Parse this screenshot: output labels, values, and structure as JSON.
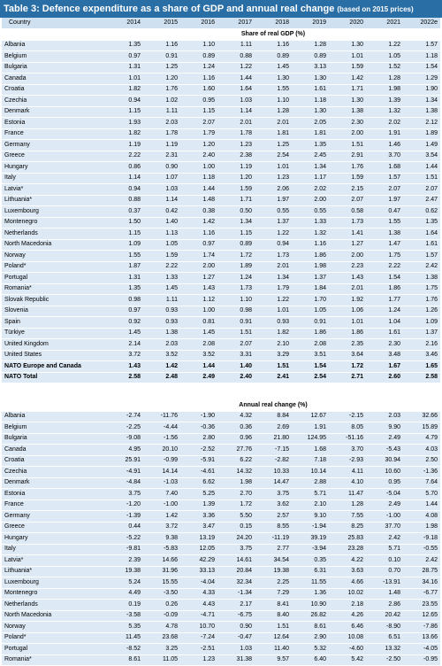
{
  "title": "Table 3: Defence expenditure as a share of GDP and annual real change",
  "subtitle": "(based on 2015 prices)",
  "table": {
    "columns": [
      "Country",
      "2014",
      "2015",
      "2016",
      "2017",
      "2018",
      "2019",
      "2020",
      "2021",
      "2022e"
    ],
    "sections": [
      {
        "label": "Share of real GDP (%)",
        "rows": [
          [
            "Albania",
            "1.35",
            "1.16",
            "1.10",
            "1.11",
            "1.16",
            "1.28",
            "1.30",
            "1.22",
            "1.57"
          ],
          [
            "Belgium",
            "0.97",
            "0.91",
            "0.89",
            "0.88",
            "0.89",
            "0.89",
            "1.01",
            "1.05",
            "1.18"
          ],
          [
            "Bulgaria",
            "1.31",
            "1.25",
            "1.24",
            "1.22",
            "1.45",
            "3.13",
            "1.59",
            "1.52",
            "1.54"
          ],
          [
            "Canada",
            "1.01",
            "1.20",
            "1.16",
            "1.44",
            "1.30",
            "1.30",
            "1.42",
            "1.28",
            "1.29"
          ],
          [
            "Croatia",
            "1.82",
            "1.76",
            "1.60",
            "1.64",
            "1.55",
            "1.61",
            "1.71",
            "1.98",
            "1.90"
          ],
          [
            "Czechia",
            "0.94",
            "1.02",
            "0.95",
            "1.03",
            "1.10",
            "1.18",
            "1.30",
            "1.39",
            "1.34"
          ],
          [
            "Denmark",
            "1.15",
            "1.11",
            "1.15",
            "1.14",
            "1.28",
            "1.30",
            "1.38",
            "1.32",
            "1.38"
          ],
          [
            "Estonia",
            "1.93",
            "2.03",
            "2.07",
            "2.01",
            "2.01",
            "2.05",
            "2.30",
            "2.02",
            "2.12"
          ],
          [
            "France",
            "1.82",
            "1.78",
            "1.79",
            "1.78",
            "1.81",
            "1.81",
            "2.00",
            "1.91",
            "1.89"
          ],
          [
            "Germany",
            "1.19",
            "1.19",
            "1.20",
            "1.23",
            "1.25",
            "1.35",
            "1.51",
            "1.46",
            "1.49"
          ],
          [
            "Greece",
            "2.22",
            "2.31",
            "2.40",
            "2.38",
            "2.54",
            "2.45",
            "2.91",
            "3.70",
            "3.54"
          ],
          [
            "Hungary",
            "0.86",
            "0.90",
            "1.00",
            "1.19",
            "1.01",
            "1.34",
            "1.76",
            "1.68",
            "1.44"
          ],
          [
            "Italy",
            "1.14",
            "1.07",
            "1.18",
            "1.20",
            "1.23",
            "1.17",
            "1.59",
            "1.57",
            "1.51"
          ],
          [
            "Latvia*",
            "0.94",
            "1.03",
            "1.44",
            "1.59",
            "2.06",
            "2.02",
            "2.15",
            "2.07",
            "2.07"
          ],
          [
            "Lithuania*",
            "0.88",
            "1.14",
            "1.48",
            "1.71",
            "1.97",
            "2.00",
            "2.07",
            "1.97",
            "2.47"
          ],
          [
            "Luxembourg",
            "0.37",
            "0.42",
            "0.38",
            "0.50",
            "0.55",
            "0.55",
            "0.58",
            "0.47",
            "0.62"
          ],
          [
            "Montenegro",
            "1.50",
            "1.40",
            "1.42",
            "1.34",
            "1.37",
            "1.33",
            "1.73",
            "1.55",
            "1.35"
          ],
          [
            "Netherlands",
            "1.15",
            "1.13",
            "1.16",
            "1.15",
            "1.22",
            "1.32",
            "1.41",
            "1.38",
            "1.64"
          ],
          [
            "North Macedonia",
            "1.09",
            "1.05",
            "0.97",
            "0.89",
            "0.94",
            "1.16",
            "1.27",
            "1.47",
            "1.61"
          ],
          [
            "Norway",
            "1.55",
            "1.59",
            "1.74",
            "1.72",
            "1.73",
            "1.86",
            "2.00",
            "1.75",
            "1.57"
          ],
          [
            "Poland*",
            "1.87",
            "2.22",
            "2.00",
            "1.89",
            "2.01",
            "1.98",
            "2.23",
            "2.22",
            "2.42"
          ],
          [
            "Portugal",
            "1.31",
            "1.33",
            "1.27",
            "1.24",
            "1.34",
            "1.37",
            "1.43",
            "1.54",
            "1.38"
          ],
          [
            "Romania*",
            "1.35",
            "1.45",
            "1.43",
            "1.73",
            "1.79",
            "1.84",
            "2.01",
            "1.86",
            "1.75"
          ],
          [
            "Slovak Republic",
            "0.98",
            "1.11",
            "1.12",
            "1.10",
            "1.22",
            "1.70",
            "1.92",
            "1.77",
            "1.76"
          ],
          [
            "Slovenia",
            "0.97",
            "0.93",
            "1.00",
            "0.98",
            "1.01",
            "1.05",
            "1.06",
            "1.24",
            "1.26"
          ],
          [
            "Spain",
            "0.92",
            "0.93",
            "0.81",
            "0.91",
            "0.93",
            "0.91",
            "1.01",
            "1.04",
            "1.09"
          ],
          [
            "Türkiye",
            "1.45",
            "1.38",
            "1.45",
            "1.51",
            "1.82",
            "1.86",
            "1.86",
            "1.61",
            "1.37"
          ],
          [
            "United Kingdom",
            "2.14",
            "2.03",
            "2.08",
            "2.07",
            "2.10",
            "2.08",
            "2.35",
            "2.30",
            "2.16"
          ],
          [
            "United States",
            "3.72",
            "3.52",
            "3.52",
            "3.31",
            "3.29",
            "3.51",
            "3.64",
            "3.48",
            "3.46"
          ],
          [
            "NATO Europe and Canada",
            "1.43",
            "1.42",
            "1.44",
            "1.40",
            "1.51",
            "1.54",
            "1.72",
            "1.67",
            "1.65"
          ],
          [
            "NATO Total",
            "2.58",
            "2.48",
            "2.49",
            "2.40",
            "2.41",
            "2.54",
            "2.71",
            "2.60",
            "2.58"
          ]
        ]
      },
      {
        "label": "Annual real change (%)",
        "rows": [
          [
            "Albania",
            "-2.74",
            "-11.76",
            "-1.90",
            "4.32",
            "8.84",
            "12.67",
            "-2.15",
            "2.03",
            "32.66"
          ],
          [
            "Belgium",
            "-2.25",
            "-4.44",
            "-0.36",
            "0.36",
            "2.69",
            "1.91",
            "8.05",
            "9.90",
            "15.89"
          ],
          [
            "Bulgaria",
            "-9.08",
            "-1.56",
            "2.80",
            "0.96",
            "21.80",
            "124.95",
            "-51.16",
            "2.49",
            "4.79"
          ],
          [
            "Canada",
            "4.95",
            "20.10",
            "-2.52",
            "27.76",
            "-7.15",
            "1.68",
            "3.70",
            "-5.43",
            "4.03"
          ],
          [
            "Croatia",
            "25.91",
            "-0.99",
            "-5.91",
            "6.22",
            "-2.82",
            "7.18",
            "-2.93",
            "30.94",
            "2.50"
          ],
          [
            "Czechia",
            "-4.91",
            "14.14",
            "-4.61",
            "14.32",
            "10.33",
            "10.14",
            "4.11",
            "10.60",
            "-1.36"
          ],
          [
            "Denmark",
            "-4.84",
            "-1.03",
            "6.62",
            "1.98",
            "14.47",
            "2.88",
            "4.10",
            "0.95",
            "7.64"
          ],
          [
            "Estonia",
            "3.75",
            "7.40",
            "5.25",
            "2.70",
            "3.75",
            "5.71",
            "11.47",
            "-5.04",
            "5.70"
          ],
          [
            "France",
            "-1.20",
            "-1.00",
            "1.39",
            "1.72",
            "3.62",
            "2.10",
            "1.28",
            "2.49",
            "1.44"
          ],
          [
            "Germany",
            "-1.39",
            "1.42",
            "3.36",
            "5.50",
            "2.57",
            "9.10",
            "7.55",
            "-1.00",
            "4.08"
          ],
          [
            "Greece",
            "0.44",
            "3.72",
            "3.47",
            "0.15",
            "8.55",
            "-1.94",
            "8.25",
            "37.70",
            "1.98"
          ],
          [
            "Hungary",
            "-5.22",
            "9.38",
            "13.19",
            "24.20",
            "-11.19",
            "39.19",
            "25.83",
            "2.42",
            "-9.18"
          ],
          [
            "Italy",
            "-9.81",
            "-5.83",
            "12.05",
            "3.75",
            "2.77",
            "-3.94",
            "23.28",
            "5.71",
            "-0.55"
          ],
          [
            "Latvia*",
            "2.39",
            "14.66",
            "42.29",
            "14.61",
            "34.54",
            "0.35",
            "4.22",
            "0.10",
            "2.42"
          ],
          [
            "Lithuania*",
            "19.38",
            "31.96",
            "33.13",
            "20.84",
            "19.38",
            "6.31",
            "3.63",
            "0.70",
            "28.75"
          ],
          [
            "Luxembourg",
            "5.24",
            "15.55",
            "-4.04",
            "32.34",
            "2.25",
            "11.55",
            "4.66",
            "-13.91",
            "34.16"
          ],
          [
            "Montenegro",
            "4.49",
            "-3.50",
            "4.33",
            "-1.34",
            "7.29",
            "1.36",
            "10.02",
            "1.48",
            "-6.77"
          ],
          [
            "Netherlands",
            "0.19",
            "0.26",
            "4.43",
            "2.17",
            "8.41",
            "10.90",
            "2.18",
            "2.86",
            "23.55"
          ],
          [
            "North Macedonia",
            "-3.58",
            "-0.09",
            "-4.71",
            "-6.75",
            "8.40",
            "26.82",
            "4.26",
            "20.42",
            "12.65"
          ],
          [
            "Norway",
            "5.35",
            "4.78",
            "10.70",
            "0.90",
            "1.51",
            "8.61",
            "6.46",
            "-8.90",
            "-7.86"
          ],
          [
            "Poland*",
            "11.45",
            "23.68",
            "-7.24",
            "-0.47",
            "12.64",
            "2.90",
            "10.08",
            "6.51",
            "13.66"
          ],
          [
            "Portugal",
            "-8.52",
            "3.25",
            "-2.51",
            "1.03",
            "11.40",
            "5.32",
            "-4.60",
            "13.32",
            "-4.05"
          ],
          [
            "Romania*",
            "8.61",
            "11.05",
            "1.23",
            "31.38",
            "9.57",
            "6.40",
            "5.42",
            "-2.50",
            "-0.95"
          ]
        ]
      }
    ]
  }
}
